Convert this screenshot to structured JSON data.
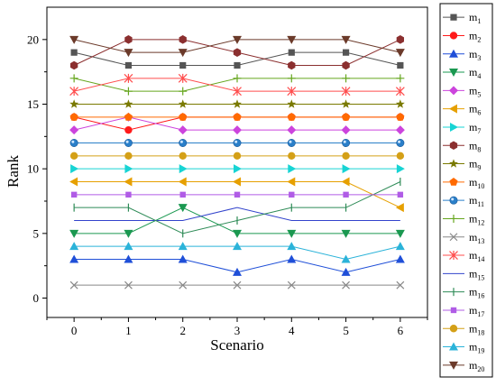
{
  "chart_data": {
    "type": "line",
    "xlabel": "Scenario",
    "ylabel": "Rank",
    "x": [
      0,
      1,
      2,
      3,
      4,
      5,
      6
    ],
    "xlim": [
      -0.5,
      6.5
    ],
    "ylim": [
      -1.5,
      22.5
    ],
    "xticks": [
      0,
      1,
      2,
      3,
      4,
      5,
      6
    ],
    "yticks": [
      0,
      5,
      10,
      15,
      20
    ],
    "grid": false,
    "legend_position": "right",
    "series": [
      {
        "name": "m1",
        "label_main": "m",
        "label_sub": "1",
        "color": "#555555",
        "marker": "square",
        "values": [
          19,
          18,
          18,
          18,
          19,
          19,
          18
        ]
      },
      {
        "name": "m2",
        "label_main": "m",
        "label_sub": "2",
        "color": "#ff1a1a",
        "marker": "circle",
        "values": [
          14,
          13,
          14,
          14,
          14,
          14,
          14
        ]
      },
      {
        "name": "m3",
        "label_main": "m",
        "label_sub": "3",
        "color": "#1f4fd8",
        "marker": "triangle-up",
        "values": [
          3,
          3,
          3,
          2,
          3,
          2,
          3
        ]
      },
      {
        "name": "m4",
        "label_main": "m",
        "label_sub": "4",
        "color": "#1a9850",
        "marker": "triangle-down",
        "values": [
          5,
          5,
          7,
          5,
          5,
          5,
          5
        ]
      },
      {
        "name": "m5",
        "label_main": "m",
        "label_sub": "5",
        "color": "#cc44dd",
        "marker": "diamond",
        "values": [
          13,
          14,
          13,
          13,
          13,
          13,
          13
        ]
      },
      {
        "name": "m6",
        "label_main": "m",
        "label_sub": "6",
        "color": "#e6a000",
        "marker": "triangle-left",
        "values": [
          9,
          9,
          9,
          9,
          9,
          9,
          7
        ]
      },
      {
        "name": "m7",
        "label_main": "m",
        "label_sub": "7",
        "color": "#17d4d4",
        "marker": "triangle-right",
        "values": [
          10,
          10,
          10,
          10,
          10,
          10,
          10
        ]
      },
      {
        "name": "m8",
        "label_main": "m",
        "label_sub": "8",
        "color": "#8b2f2f",
        "marker": "hexagon",
        "values": [
          18,
          20,
          20,
          19,
          18,
          18,
          20
        ]
      },
      {
        "name": "m9",
        "label_main": "m",
        "label_sub": "9",
        "color": "#7a7a00",
        "marker": "star",
        "values": [
          15,
          15,
          15,
          15,
          15,
          15,
          15
        ]
      },
      {
        "name": "m10",
        "label_main": "m",
        "label_sub": "10",
        "color": "#ff6a00",
        "marker": "pentagon",
        "values": [
          14,
          14,
          14,
          14,
          14,
          14,
          14
        ]
      },
      {
        "name": "m11",
        "label_main": "m",
        "label_sub": "11",
        "color": "#2a7fc9",
        "marker": "sphere",
        "values": [
          12,
          12,
          12,
          12,
          12,
          12,
          12
        ]
      },
      {
        "name": "m12",
        "label_main": "m",
        "label_sub": "12",
        "color": "#66a61e",
        "marker": "plus",
        "values": [
          17,
          16,
          16,
          17,
          17,
          17,
          17
        ]
      },
      {
        "name": "m13",
        "label_main": "m",
        "label_sub": "13",
        "color": "#888888",
        "marker": "x",
        "values": [
          1,
          1,
          1,
          1,
          1,
          1,
          1
        ]
      },
      {
        "name": "m14",
        "label_main": "m",
        "label_sub": "14",
        "color": "#ff4d4d",
        "marker": "asterisk",
        "values": [
          16,
          17,
          17,
          16,
          16,
          16,
          16
        ]
      },
      {
        "name": "m15",
        "label_main": "m",
        "label_sub": "15",
        "color": "#3344cc",
        "marker": "none",
        "values": [
          6,
          6,
          6,
          7,
          6,
          6,
          6
        ]
      },
      {
        "name": "m16",
        "label_main": "m",
        "label_sub": "16",
        "color": "#2e8b57",
        "marker": "vline",
        "values": [
          7,
          7,
          5,
          6,
          7,
          7,
          9
        ]
      },
      {
        "name": "m17",
        "label_main": "m",
        "label_sub": "17",
        "color": "#b05ce6",
        "marker": "square-small",
        "values": [
          8,
          8,
          8,
          8,
          8,
          8,
          8
        ]
      },
      {
        "name": "m18",
        "label_main": "m",
        "label_sub": "18",
        "color": "#d4a017",
        "marker": "circle",
        "values": [
          11,
          11,
          11,
          11,
          11,
          11,
          11
        ]
      },
      {
        "name": "m19",
        "label_main": "m",
        "label_sub": "19",
        "color": "#2bb3d9",
        "marker": "triangle-up",
        "values": [
          4,
          4,
          4,
          4,
          4,
          3,
          4
        ]
      },
      {
        "name": "m20",
        "label_main": "m",
        "label_sub": "20",
        "color": "#6b3a2a",
        "marker": "triangle-down",
        "values": [
          20,
          19,
          19,
          20,
          20,
          20,
          19
        ]
      }
    ]
  }
}
